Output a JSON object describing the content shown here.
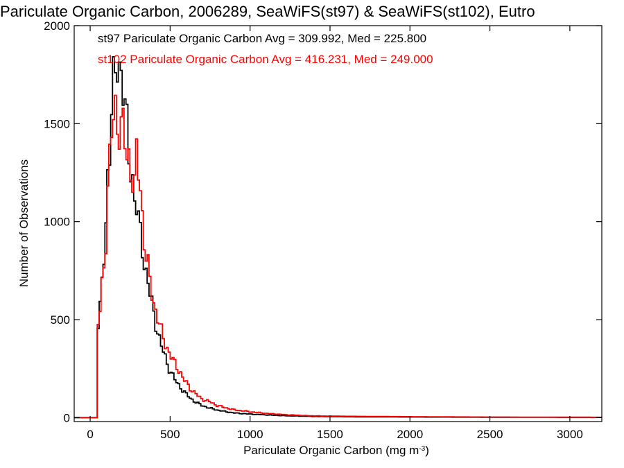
{
  "chart_data": {
    "type": "histogram-step",
    "title": "Pariculate Organic Carbon, 2006289, SeaWiFS(st97) & SeaWiFS(st102), Eutro",
    "xlabel": "Pariculate Organic Carbon (mg m",
    "xlabel_sup": "-3",
    "xlabel_close": ")",
    "ylabel": "Number of Observations",
    "xlim": [
      -100,
      3200
    ],
    "ylim": [
      -20,
      2000
    ],
    "xticks": [
      0,
      500,
      1000,
      1500,
      2000,
      2500,
      3000
    ],
    "yticks": [
      0,
      500,
      1000,
      1500,
      2000
    ],
    "bin_width": 12,
    "legend": [
      {
        "text": "st97 Pariculate Organic Carbon Avg = 309.992, Med = 225.800",
        "color": "#000000"
      },
      {
        "text": "st102 Pariculate Organic Carbon Avg = 416.231, Med = 249.000",
        "color": "#ff0000"
      }
    ],
    "series": [
      {
        "color": "#000000",
        "points": [
          [
            -100,
            0
          ],
          [
            40,
            0
          ],
          [
            50,
            480
          ],
          [
            60,
            520
          ],
          [
            70,
            680
          ],
          [
            80,
            700
          ],
          [
            90,
            880
          ],
          [
            100,
            1000
          ],
          [
            110,
            1260
          ],
          [
            120,
            1380
          ],
          [
            130,
            1500
          ],
          [
            140,
            1650
          ],
          [
            150,
            1700
          ],
          [
            160,
            1740
          ],
          [
            170,
            1800
          ],
          [
            180,
            1780
          ],
          [
            190,
            1840
          ],
          [
            200,
            1720
          ],
          [
            210,
            1700
          ],
          [
            220,
            1540
          ],
          [
            230,
            1460
          ],
          [
            240,
            1330
          ],
          [
            250,
            1300
          ],
          [
            260,
            1250
          ],
          [
            270,
            1200
          ],
          [
            280,
            1100
          ],
          [
            290,
            1080
          ],
          [
            300,
            1000
          ],
          [
            310,
            950
          ],
          [
            320,
            900
          ],
          [
            330,
            850
          ],
          [
            340,
            790
          ],
          [
            350,
            740
          ],
          [
            360,
            700
          ],
          [
            370,
            650
          ],
          [
            380,
            600
          ],
          [
            390,
            560
          ],
          [
            400,
            520
          ],
          [
            420,
            450
          ],
          [
            440,
            380
          ],
          [
            460,
            330
          ],
          [
            480,
            280
          ],
          [
            500,
            240
          ],
          [
            520,
            210
          ],
          [
            540,
            180
          ],
          [
            560,
            160
          ],
          [
            580,
            140
          ],
          [
            600,
            120
          ],
          [
            625,
            100
          ],
          [
            650,
            85
          ],
          [
            675,
            72
          ],
          [
            700,
            62
          ],
          [
            750,
            48
          ],
          [
            800,
            38
          ],
          [
            850,
            30
          ],
          [
            900,
            24
          ],
          [
            1000,
            18
          ],
          [
            1100,
            14
          ],
          [
            1200,
            10
          ],
          [
            1300,
            8
          ],
          [
            1400,
            6
          ],
          [
            1600,
            4
          ],
          [
            2000,
            3
          ],
          [
            2500,
            2
          ],
          [
            3200,
            1
          ]
        ]
      },
      {
        "color": "#ff0000",
        "points": [
          [
            -100,
            0
          ],
          [
            40,
            0
          ],
          [
            50,
            480
          ],
          [
            60,
            520
          ],
          [
            70,
            640
          ],
          [
            80,
            700
          ],
          [
            90,
            800
          ],
          [
            100,
            960
          ],
          [
            110,
            1200
          ],
          [
            120,
            1300
          ],
          [
            130,
            1400
          ],
          [
            140,
            1500
          ],
          [
            150,
            1520
          ],
          [
            160,
            1560
          ],
          [
            170,
            1500
          ],
          [
            180,
            1520
          ],
          [
            190,
            1480
          ],
          [
            200,
            1520
          ],
          [
            210,
            1450
          ],
          [
            220,
            1380
          ],
          [
            230,
            1310
          ],
          [
            240,
            1330
          ],
          [
            250,
            1300
          ],
          [
            260,
            1280
          ],
          [
            270,
            1200
          ],
          [
            280,
            1150
          ],
          [
            290,
            1340
          ],
          [
            300,
            1270
          ],
          [
            310,
            1200
          ],
          [
            320,
            1100
          ],
          [
            330,
            1000
          ],
          [
            340,
            900
          ],
          [
            350,
            820
          ],
          [
            360,
            770
          ],
          [
            370,
            720
          ],
          [
            380,
            660
          ],
          [
            390,
            620
          ],
          [
            400,
            580
          ],
          [
            420,
            520
          ],
          [
            440,
            450
          ],
          [
            460,
            400
          ],
          [
            480,
            360
          ],
          [
            500,
            320
          ],
          [
            520,
            290
          ],
          [
            540,
            260
          ],
          [
            560,
            240
          ],
          [
            580,
            200
          ],
          [
            600,
            180
          ],
          [
            625,
            150
          ],
          [
            650,
            130
          ],
          [
            675,
            110
          ],
          [
            700,
            95
          ],
          [
            750,
            80
          ],
          [
            800,
            60
          ],
          [
            850,
            50
          ],
          [
            900,
            40
          ],
          [
            1000,
            30
          ],
          [
            1100,
            22
          ],
          [
            1200,
            16
          ],
          [
            1300,
            12
          ],
          [
            1400,
            9
          ],
          [
            1600,
            7
          ],
          [
            2000,
            5
          ],
          [
            2500,
            3
          ],
          [
            3200,
            2
          ]
        ]
      }
    ]
  }
}
